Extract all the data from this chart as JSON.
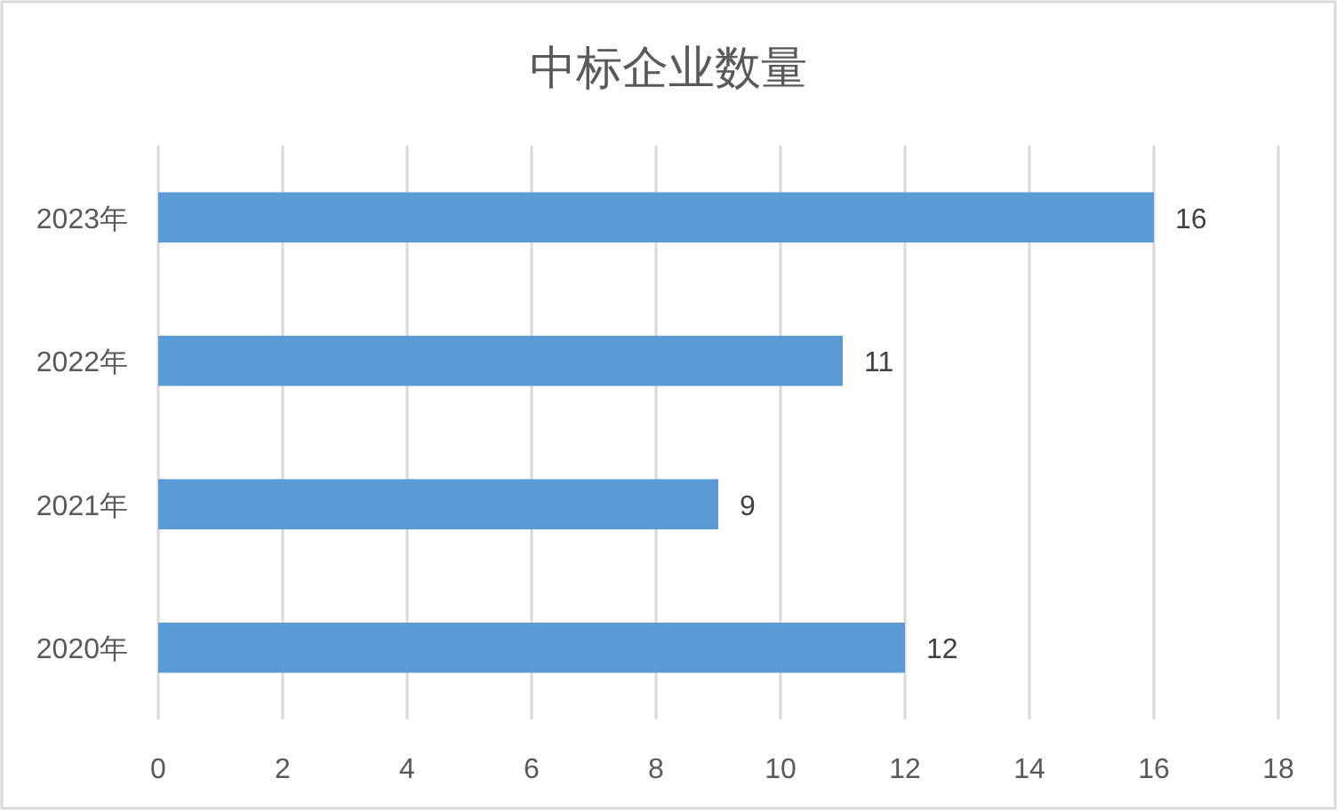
{
  "chart_data": {
    "type": "bar",
    "orientation": "horizontal",
    "title": "中标企业数量",
    "categories": [
      "2023年",
      "2022年",
      "2021年",
      "2020年"
    ],
    "values": [
      16,
      11,
      9,
      12
    ],
    "color": "#5b9bd5",
    "xlim": [
      0,
      18
    ],
    "xticks": [
      0,
      2,
      4,
      6,
      8,
      10,
      12,
      14,
      16,
      18
    ],
    "grid": "x",
    "data_labels": true
  }
}
